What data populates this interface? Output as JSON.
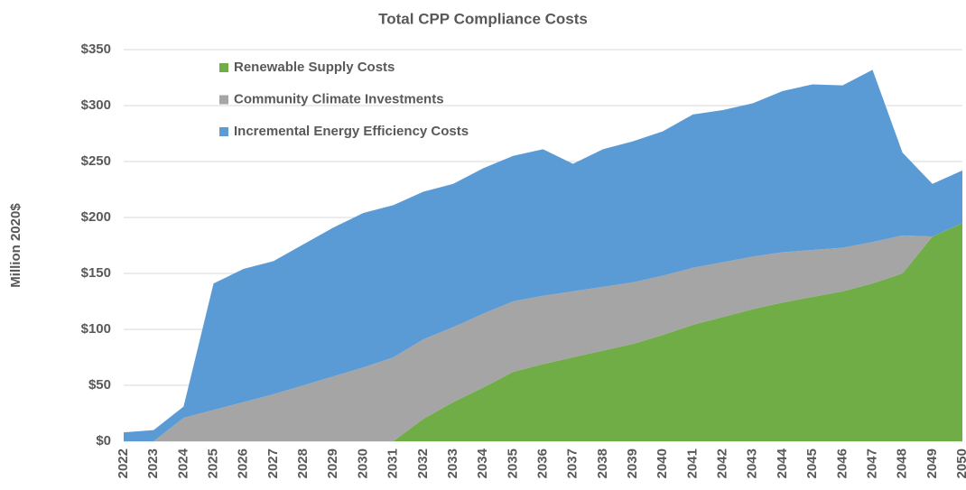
{
  "chart_data": {
    "type": "stacked_area",
    "title": "Total CPP Compliance Costs",
    "ylabel": "Million 2020$",
    "categories": [
      "2022",
      "2023",
      "2024",
      "2025",
      "2026",
      "2027",
      "2028",
      "2029",
      "2030",
      "2031",
      "2032",
      "2033",
      "2034",
      "2035",
      "2036",
      "2037",
      "2038",
      "2039",
      "2040",
      "2041",
      "2042",
      "2043",
      "2044",
      "2045",
      "2046",
      "2047",
      "2048",
      "2049",
      "2050"
    ],
    "series": [
      {
        "name": "Renewable Supply Costs",
        "color": "#70ad47",
        "values": [
          0,
          0,
          0,
          0,
          0,
          0,
          0,
          0,
          0,
          0,
          20,
          35,
          48,
          62,
          69,
          75,
          81,
          87,
          95,
          104,
          111,
          118,
          124,
          129,
          134,
          141,
          150,
          183,
          195
        ]
      },
      {
        "name": "Community Climate Investments",
        "color": "#a5a5a5",
        "values": [
          0,
          0,
          21,
          28,
          35,
          42,
          50,
          58,
          66,
          75,
          71,
          67,
          66,
          63,
          61,
          59,
          57,
          55,
          53,
          51,
          49,
          47,
          45,
          42,
          39,
          37,
          34,
          0,
          0
        ]
      },
      {
        "name": "Incremental Energy Efficiency Costs",
        "color": "#5b9bd5",
        "values": [
          8,
          10,
          10,
          113,
          119,
          119,
          126,
          133,
          138,
          136,
          132,
          128,
          130,
          130,
          131,
          114,
          123,
          126,
          129,
          137,
          136,
          137,
          144,
          148,
          145,
          154,
          74,
          47,
          47
        ]
      }
    ],
    "ylim": [
      0,
      350
    ],
    "yticks": [
      {
        "value": 0,
        "label": "$0"
      },
      {
        "value": 50,
        "label": "$50"
      },
      {
        "value": 100,
        "label": "$100"
      },
      {
        "value": 150,
        "label": "$150"
      },
      {
        "value": 200,
        "label": "$200"
      },
      {
        "value": 250,
        "label": "$250"
      },
      {
        "value": 300,
        "label": "$300"
      },
      {
        "value": 350,
        "label": "$350"
      }
    ],
    "grid": true,
    "legend": "upper left"
  }
}
